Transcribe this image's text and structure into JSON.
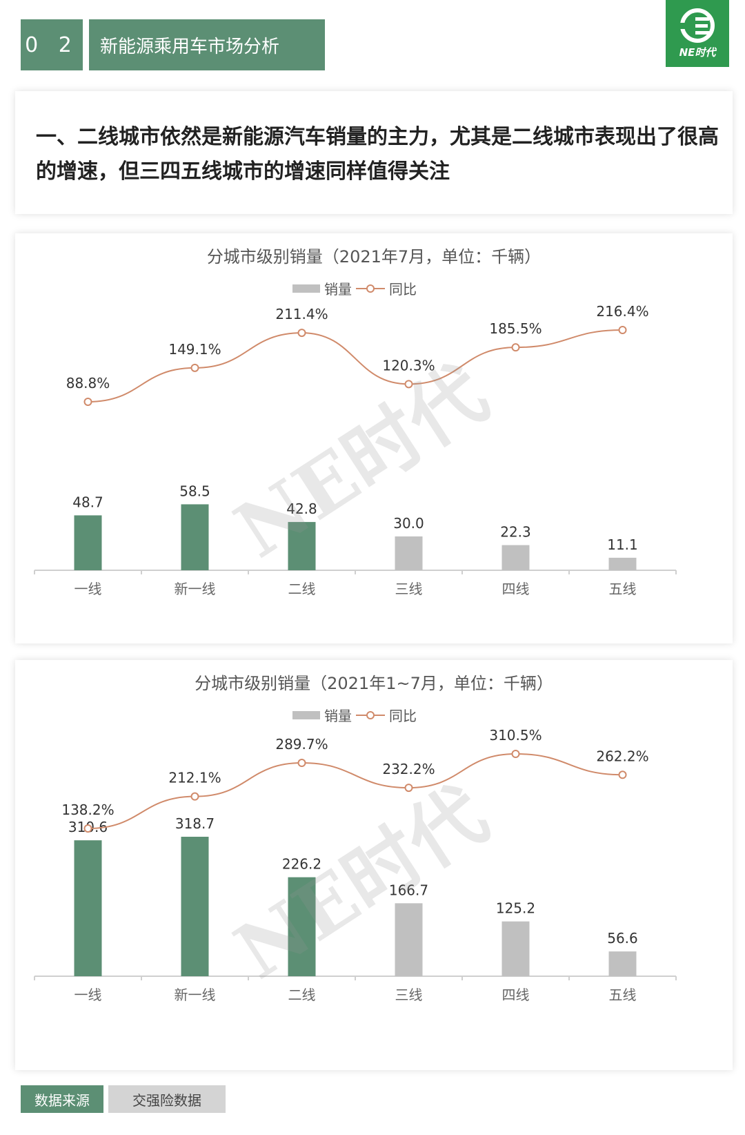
{
  "header": {
    "section_number": "0 2",
    "section_title": "新能源乘用车市场分析",
    "logo_text": "NE时代"
  },
  "headline": "一、二线城市依然是新能源汽车销量的主力，尤其是二线城市表现出了很高的增速，但三四五线城市的增速同样值得关注",
  "watermark": "NE时代",
  "colors": {
    "highlight_bar": "#5c8f74",
    "other_bar": "#c0c0c0",
    "line": "#d08a6a",
    "header_bg": "#5c8f74",
    "logo_bg": "#2f9a4f"
  },
  "chart_data": [
    {
      "type": "bar",
      "title": "分城市级别销量（2021年7月，单位：千辆）",
      "categories": [
        "一线",
        "新一线",
        "二线",
        "三线",
        "四线",
        "五线"
      ],
      "series": [
        {
          "name": "销量",
          "type": "bar",
          "values": [
            48.7,
            58.5,
            42.8,
            30.0,
            22.3,
            11.1
          ],
          "labels": [
            "48.7",
            "58.5",
            "42.8",
            "30.0",
            "22.3",
            "11.1"
          ]
        },
        {
          "name": "同比",
          "type": "line",
          "values": [
            88.8,
            149.1,
            211.4,
            120.3,
            185.5,
            216.4
          ],
          "labels": [
            "88.8%",
            "149.1%",
            "211.4%",
            "120.3%",
            "185.5%",
            "216.4%"
          ]
        }
      ],
      "highlighted_categories": [
        "一线",
        "新一线",
        "二线"
      ],
      "legend": "top-center",
      "grid": false
    },
    {
      "type": "bar",
      "title": "分城市级别销量（2021年1~7月，单位：千辆）",
      "categories": [
        "一线",
        "新一线",
        "二线",
        "三线",
        "四线",
        "五线"
      ],
      "series": [
        {
          "name": "销量",
          "type": "bar",
          "values": [
            310.6,
            318.7,
            226.2,
            166.7,
            125.2,
            56.6
          ],
          "labels": [
            "310.6",
            "318.7",
            "226.2",
            "166.7",
            "125.2",
            "56.6"
          ]
        },
        {
          "name": "同比",
          "type": "line",
          "values": [
            138.2,
            212.1,
            289.7,
            232.2,
            310.5,
            262.2
          ],
          "labels": [
            "138.2%",
            "212.1%",
            "289.7%",
            "232.2%",
            "310.5%",
            "262.2%"
          ]
        }
      ],
      "highlighted_categories": [
        "一线",
        "新一线",
        "二线"
      ],
      "legend": "top-center",
      "grid": false
    }
  ],
  "source": {
    "label": "数据来源",
    "value": "交强险数据"
  }
}
